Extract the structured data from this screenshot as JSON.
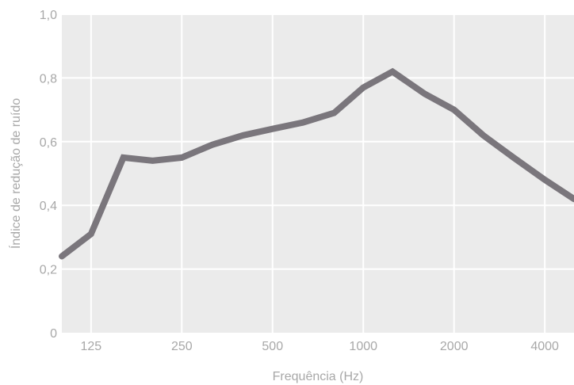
{
  "chart_data": {
    "type": "line",
    "title": "",
    "xlabel": "Frequência (Hz)",
    "ylabel": "Índice de redução de ruído",
    "x_scale": "log2",
    "x_ticks": [
      125,
      250,
      500,
      1000,
      2000,
      4000
    ],
    "x_tick_labels": [
      "125",
      "250",
      "500",
      "1000",
      "2000",
      "4000"
    ],
    "xlim": [
      100,
      5000
    ],
    "y_ticks": [
      0,
      0.2,
      0.4,
      0.6,
      0.8,
      1.0
    ],
    "y_tick_labels": [
      "0",
      "0,2",
      "0,4",
      "0,6",
      "0,8",
      "1,0"
    ],
    "ylim": [
      0,
      1.0
    ],
    "grid": true,
    "legend": "none",
    "colors": {
      "plot_background": "#ebebeb",
      "grid": "#ffffff",
      "line": "#7a767c",
      "text": "#a8a8a8"
    },
    "series": [
      {
        "x": [
          100,
          125,
          160,
          200,
          250,
          315,
          400,
          500,
          630,
          800,
          1000,
          1250,
          1600,
          2000,
          2500,
          3150,
          4000,
          5000
        ],
        "values": [
          0.24,
          0.31,
          0.55,
          0.54,
          0.55,
          0.59,
          0.62,
          0.64,
          0.66,
          0.69,
          0.77,
          0.82,
          0.75,
          0.7,
          0.62,
          0.55,
          0.48,
          0.42
        ]
      }
    ]
  }
}
